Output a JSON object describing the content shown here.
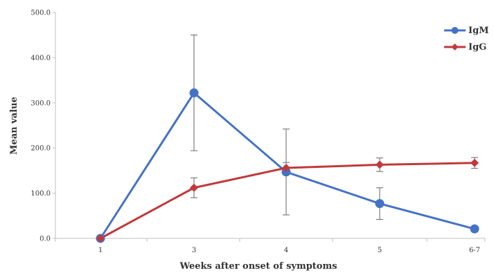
{
  "chart_data": {
    "type": "line",
    "categories": [
      "1",
      "3",
      "4",
      "5",
      "6-7"
    ],
    "xlabel": "Weeks after onset of symptoms",
    "ylabel": "Mean value",
    "ylim": [
      0,
      500
    ],
    "yticks": [
      "0.0",
      "100.0",
      "200.0",
      "300.0",
      "400.0",
      "500.0"
    ],
    "grid": false,
    "legend_position": "top-right",
    "series": [
      {
        "name": "IgM",
        "color": "#4472C4",
        "marker": "circle",
        "values": [
          0,
          322,
          147,
          77,
          21
        ],
        "error": [
          0,
          128,
          95,
          35,
          0
        ]
      },
      {
        "name": "IgG",
        "color": "#C0393B",
        "marker": "diamond",
        "values": [
          0,
          112,
          156,
          163,
          167
        ],
        "error": [
          0,
          22,
          12,
          15,
          12
        ]
      }
    ]
  }
}
